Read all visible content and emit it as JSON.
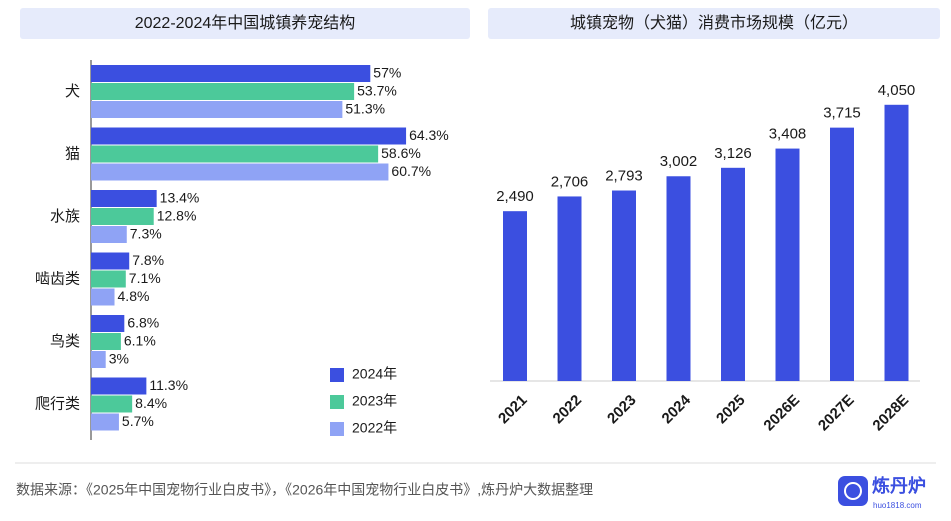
{
  "chart_data": [
    {
      "type": "bar",
      "orientation": "horizontal",
      "title": "2022-2024年中国城镇养宠结构",
      "categories": [
        "犬",
        "猫",
        "水族",
        "啮齿类",
        "鸟类",
        "爬行类"
      ],
      "series": [
        {
          "name": "2024年",
          "color": "#3b4fe0",
          "values": [
            57,
            64.3,
            13.4,
            7.8,
            6.8,
            11.3
          ],
          "value_labels": [
            "57%",
            "64.3%",
            "13.4%",
            "7.8%",
            "6.8%",
            "11.3%"
          ]
        },
        {
          "name": "2023年",
          "color": "#4cc99a",
          "values": [
            53.7,
            58.6,
            12.8,
            7.1,
            6.1,
            8.4
          ],
          "value_labels": [
            "53.7%",
            "58.6%",
            "12.8%",
            "7.1%",
            "6.1%",
            "8.4%"
          ]
        },
        {
          "name": "2022年",
          "color": "#8fa3f5",
          "values": [
            51.3,
            60.7,
            7.3,
            4.8,
            3,
            5.7
          ],
          "value_labels": [
            "51.3%",
            "60.7%",
            "7.3%",
            "4.8%",
            "3%",
            "5.7%"
          ]
        }
      ],
      "legend": "lower-right"
    },
    {
      "type": "bar",
      "orientation": "vertical",
      "title": "城镇宠物（犬猫）消费市场规模（亿元）",
      "categories": [
        "2021",
        "2022",
        "2023",
        "2024",
        "2025",
        "2026E",
        "2027E",
        "2028E"
      ],
      "values": [
        2490,
        2706,
        2793,
        3002,
        3126,
        3408,
        3715,
        4050
      ],
      "value_labels": [
        "2,490",
        "2,706",
        "2,793",
        "3,002",
        "3,126",
        "3,408",
        "3,715",
        "4,050"
      ],
      "color": "#3b4fe0"
    }
  ],
  "source": "数据来源：《2025年中国宠物行业白皮书》，《2026年中国宠物行业白皮书》,炼丹炉大数据整理",
  "logo": {
    "name": "炼丹炉",
    "url": "huo1818.com"
  }
}
